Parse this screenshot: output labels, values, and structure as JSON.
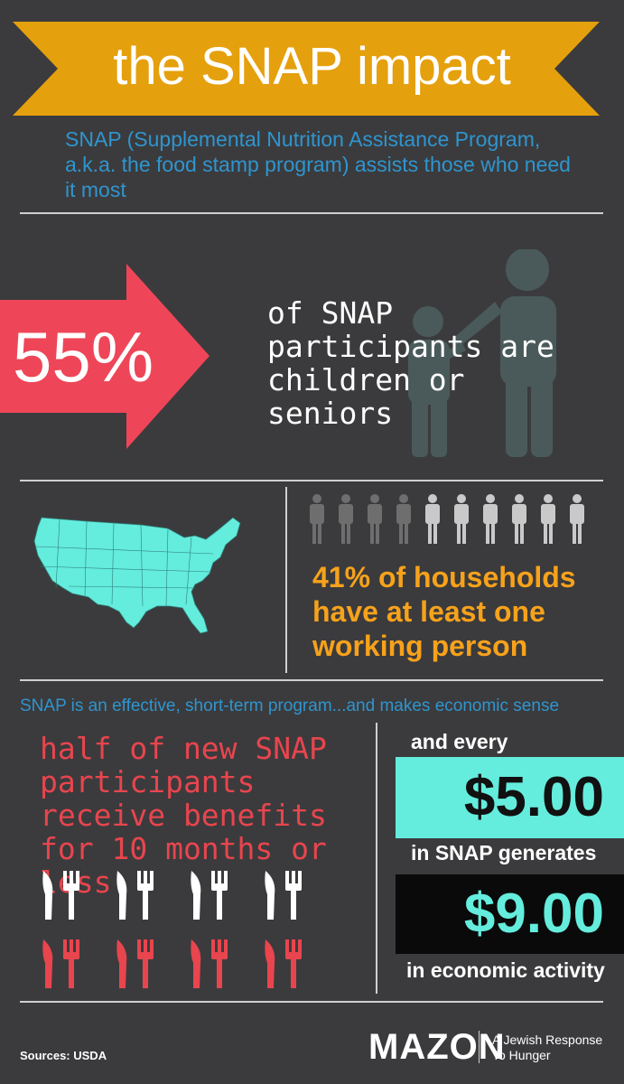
{
  "header": {
    "title": "the SNAP impact",
    "intro": "SNAP (Supplemental Nutrition Assistance Program, a.k.a. the food stamp program) assists those who need it most"
  },
  "stat_children": {
    "value": "55%",
    "text": "of SNAP participants are children or seniors"
  },
  "stat_households": {
    "text": "41% of households have at least one working person",
    "people_total": 10,
    "people_highlighted": 4
  },
  "economics": {
    "tagline": "SNAP is an effective, short-term program...and makes economic sense",
    "duration_text": "half of new SNAP participants receive benefits for 10 months or less",
    "and_every": "and every",
    "amount_in": "$5.00",
    "in_snap_generates": "in SNAP generates",
    "amount_out": "$9.00",
    "in_economic_activity": "in economic activity"
  },
  "footer": {
    "sources": "Sources: USDA",
    "logo": "MAZON",
    "logo_tagline": "A Jewish Response To Hunger"
  },
  "colors": {
    "background": "#3b3b3d",
    "banner": "#e5a00d",
    "blue_text": "#2f95cf",
    "red_arrow": "#ee4658",
    "orange_text": "#f7a21b",
    "teal": "#64ecdd",
    "red_text": "#e8454e"
  },
  "icons": [
    "family-silhouette-icon",
    "us-map-icon",
    "person-icon",
    "fork-knife-icon"
  ]
}
